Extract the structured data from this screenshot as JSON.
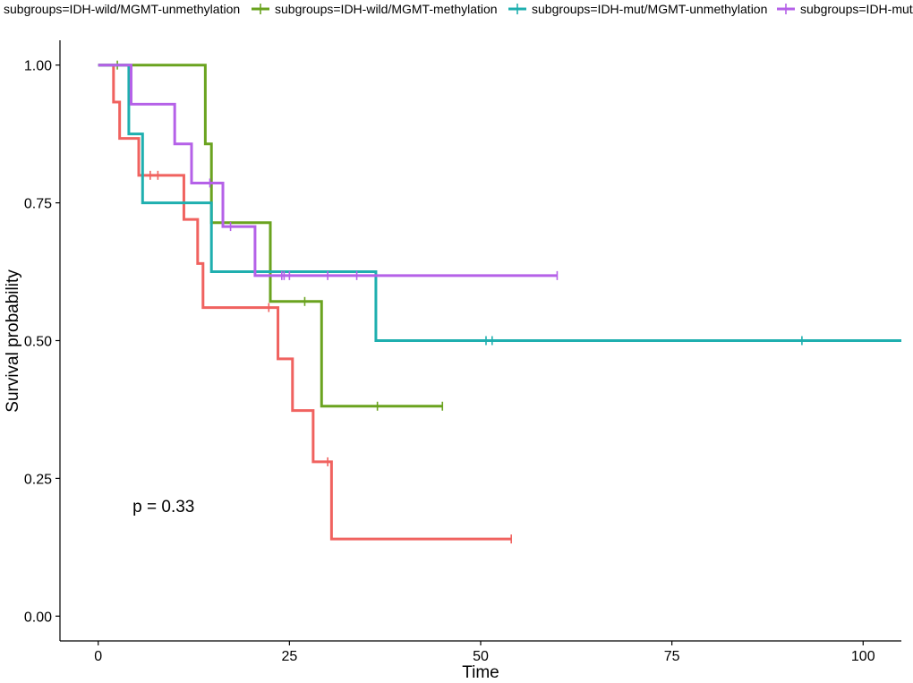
{
  "chart_data": {
    "type": "line",
    "subtype": "kaplan-meier",
    "xlabel": "Time",
    "ylabel": "Survival probability",
    "xlim": [
      -5,
      105
    ],
    "ylim": [
      -0.045,
      1.045
    ],
    "x_ticks": [
      0,
      25,
      50,
      75,
      100
    ],
    "y_ticks": [
      0.0,
      0.25,
      0.5,
      0.75,
      1.0
    ],
    "x_tick_labels": [
      "0",
      "25",
      "50",
      "75",
      "100"
    ],
    "y_tick_labels": [
      "0.00",
      "0.25",
      "0.50",
      "0.75",
      "1.00"
    ],
    "annotation": "p = 0.33",
    "annotation_pos": [
      4.5,
      0.2
    ],
    "grid": false,
    "legend_position": "top",
    "series": [
      {
        "name": "subgroups=IDH-wild/MGMT-unmethylation",
        "color": "#F0625F",
        "steps": [
          [
            0,
            1.0
          ],
          [
            2,
            0.933
          ],
          [
            2.8,
            0.867
          ],
          [
            5.3,
            0.8
          ],
          [
            11.2,
            0.72
          ],
          [
            13,
            0.64
          ],
          [
            13.7,
            0.56
          ],
          [
            23.5,
            0.467
          ],
          [
            25.4,
            0.373
          ],
          [
            28.1,
            0.28
          ],
          [
            30.5,
            0.14
          ]
        ],
        "end": 54,
        "censored": [
          [
            6.8,
            0.8
          ],
          [
            7.8,
            0.8
          ],
          [
            22.3,
            0.56
          ],
          [
            30,
            0.28
          ],
          [
            54,
            0.14
          ]
        ]
      },
      {
        "name": "subgroups=IDH-wild/MGMT-methylation",
        "color": "#6AA31F",
        "steps": [
          [
            0,
            1.0
          ],
          [
            14,
            0.857
          ],
          [
            14.8,
            0.714
          ],
          [
            22.5,
            0.571
          ],
          [
            29.2,
            0.381
          ]
        ],
        "end": 45,
        "censored": [
          [
            2.5,
            1.0
          ],
          [
            27,
            0.571
          ],
          [
            36.5,
            0.381
          ],
          [
            45,
            0.381
          ]
        ]
      },
      {
        "name": "subgroups=IDH-mut/MGMT-unmethylation",
        "color": "#1FAFAF",
        "steps": [
          [
            0,
            1.0
          ],
          [
            4,
            0.875
          ],
          [
            5.8,
            0.75
          ],
          [
            14.8,
            0.625
          ],
          [
            36.3,
            0.5
          ]
        ],
        "end": 105,
        "censored": [
          [
            50.7,
            0.5
          ],
          [
            51.5,
            0.5
          ],
          [
            92,
            0.5
          ]
        ]
      },
      {
        "name": "subgroups=IDH-mut/MGMT-methylation",
        "color": "#B561E8",
        "steps": [
          [
            0,
            1.0
          ],
          [
            4.3,
            0.929
          ],
          [
            10,
            0.857
          ],
          [
            12.2,
            0.786
          ],
          [
            16.3,
            0.707
          ],
          [
            20.5,
            0.618
          ]
        ],
        "end": 60,
        "censored": [
          [
            14.6,
            0.786
          ],
          [
            17.3,
            0.707
          ],
          [
            24,
            0.618
          ],
          [
            24.3,
            0.618
          ],
          [
            25,
            0.618
          ],
          [
            30,
            0.618
          ],
          [
            33.8,
            0.618
          ],
          [
            60,
            0.618
          ]
        ]
      }
    ]
  }
}
